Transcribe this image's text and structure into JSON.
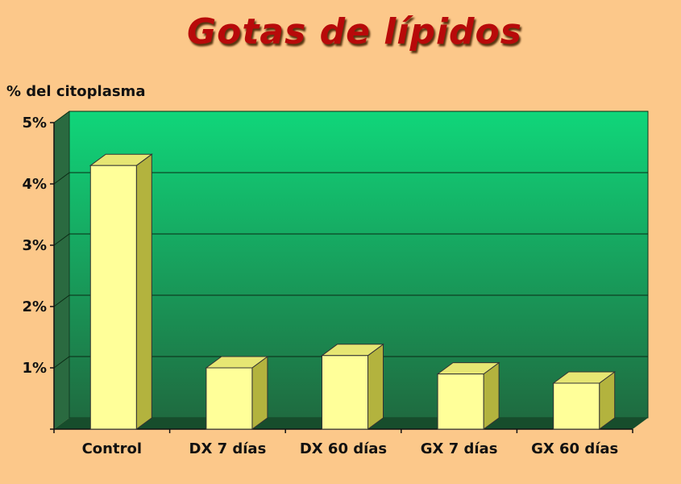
{
  "chart_data": {
    "type": "bar",
    "title": "Gotas de lípidos",
    "ylabel": "% del citoplasma",
    "xlabel": "",
    "categories": [
      "Control",
      "DX 7 días",
      "DX 60 días",
      "GX 7 días",
      "GX 60 días"
    ],
    "values": [
      4.3,
      1.0,
      1.2,
      0.9,
      0.75
    ],
    "ylim": [
      0,
      5
    ],
    "yticks": [
      1,
      2,
      3,
      4,
      5
    ],
    "ytick_labels": [
      "1%",
      "2%",
      "3%",
      "4%",
      "5%"
    ],
    "grid": true,
    "legend": "none",
    "colors": {
      "background": "#fcc88a",
      "plot_top": "#10d67a",
      "plot_bottom": "#1f6b40",
      "bar_front": "#ffff99",
      "bar_top": "#e6e673",
      "bar_side": "#b3b33e",
      "title": "#b80a0a"
    }
  }
}
